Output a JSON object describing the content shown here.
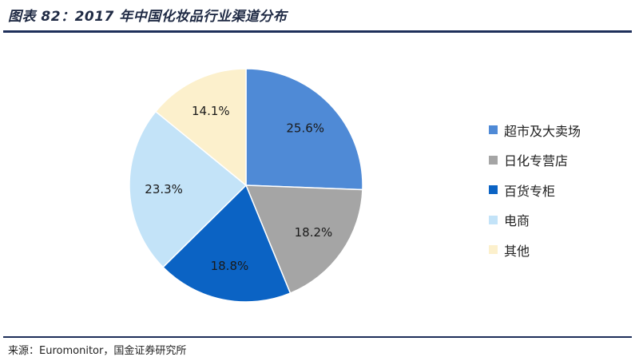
{
  "header": {
    "title": "图表 82：2017 年中国化妆品行业渠道分布"
  },
  "footer": {
    "source_prefix": "来源：",
    "source_text": "Euromonitor，国金证券研究所"
  },
  "colors": {
    "slices": [
      "#4f8ad6",
      "#a5a5a5",
      "#0b63c4",
      "#c3e3f8",
      "#fcf0cc"
    ],
    "slice_border": "#ffffff",
    "rule": "#1e2f5a"
  },
  "chart_data": {
    "type": "pie",
    "title": "",
    "start": "12 o'clock",
    "direction": "clockwise",
    "categories": [
      "超市及大卖场",
      "日化专营店",
      "百货专柜",
      "电商",
      "其他"
    ],
    "values": [
      25.6,
      18.2,
      18.8,
      23.3,
      14.1
    ],
    "data_labels": [
      "25.6%",
      "18.2%",
      "18.8%",
      "23.3%",
      "14.1%"
    ],
    "legend": {
      "position": "right",
      "entries": [
        "超市及大卖场",
        "日化专营店",
        "百货专柜",
        "电商",
        "其他"
      ]
    }
  }
}
